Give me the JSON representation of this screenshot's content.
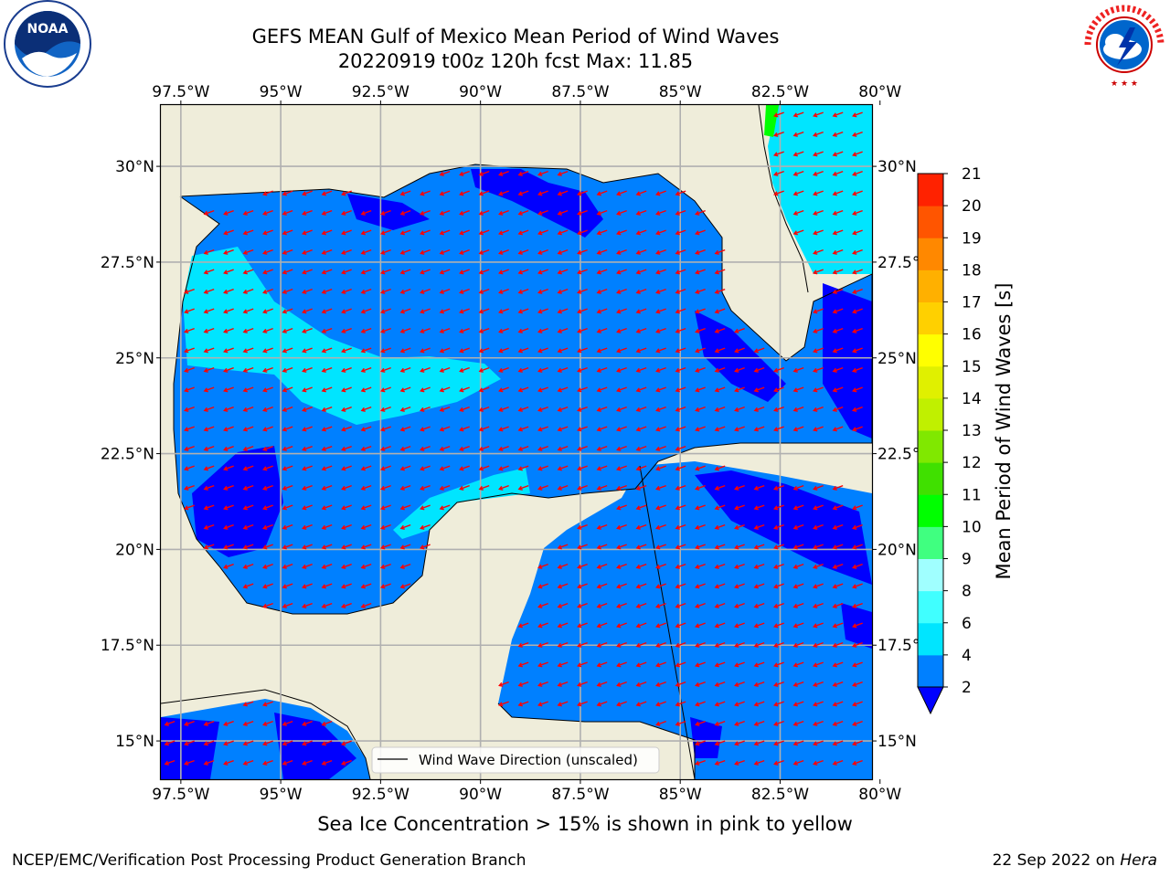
{
  "header": {
    "title_line1": "GEFS MEAN Gulf of Mexico Mean Period of Wind Waves",
    "title_line2": "20220919 t00z 120h fcst   Max: 11.85"
  },
  "logos": {
    "left": "NOAA",
    "left_ring": "NATIONAL OCEANIC AND ATMOSPHERIC ADMINISTRATION · U.S. DEPARTMENT OF COMMERCE",
    "right_ring": "NATIONAL WEATHER SERVICE"
  },
  "chart_data": {
    "type": "heatmap",
    "title": "GEFS MEAN Gulf of Mexico Mean Period of Wind Waves",
    "subtitle": "20220919 t00z 120h fcst   Max: 11.85",
    "max_value": 11.85,
    "x_axis": {
      "range": [
        -98,
        -80.2
      ],
      "ticks": [
        -97.5,
        -95,
        -92.5,
        -90,
        -87.5,
        -85,
        -82.5,
        -80
      ],
      "tick_labels": [
        "97.5°W",
        "95°W",
        "92.5°W",
        "90°W",
        "87.5°W",
        "85°W",
        "82.5°W",
        "80°W"
      ]
    },
    "y_axis": {
      "range": [
        14,
        31.6
      ],
      "ticks": [
        15,
        17.5,
        20,
        22.5,
        25,
        27.5,
        30
      ],
      "tick_labels": [
        "15°N",
        "17.5°N",
        "20°N",
        "22.5°N",
        "25°N",
        "27.5°N",
        "30°N"
      ]
    },
    "grid": true,
    "legend": {
      "placement": "bottom-right",
      "label": "Wind Wave Direction (unscaled)"
    },
    "colorbar": {
      "label": "Mean Period of Wind Waves [s]",
      "levels": [
        2,
        4,
        6,
        8,
        9,
        10,
        11,
        12,
        13,
        14,
        15,
        16,
        17,
        18,
        19,
        20,
        21
      ],
      "level_labels": [
        "2",
        "4",
        "6",
        "8",
        "9",
        "10",
        "11",
        "12",
        "13",
        "14",
        "15",
        "16",
        "17",
        "18",
        "19",
        "20",
        "21"
      ],
      "colors": [
        "#0080ff",
        "#00e5ff",
        "#40ffff",
        "#a0ffff",
        "#40ff80",
        "#00ff00",
        "#40e000",
        "#80e800",
        "#c0f000",
        "#e0f000",
        "#ffff00",
        "#ffd000",
        "#ffb000",
        "#ff8800",
        "#ff5500",
        "#ff2200",
        "#ff0000"
      ],
      "under_color": "#0000ff",
      "extend": "min"
    },
    "colors": {
      "land": "#efedda",
      "coastline": "#000000",
      "gridline": "#b0b0b0",
      "arrow": "#ff0000"
    },
    "wind_wave_direction": {
      "predominant": "toward west-southwest",
      "angle_deg_from_east": 200
    }
  },
  "footer": {
    "note": "Sea Ice Concentration > 15% is shown in pink to yellow",
    "left": "NCEP/EMC/Verification Post Processing Product Generation Branch",
    "right_date": "22 Sep 2022 on",
    "right_host": "Hera"
  }
}
